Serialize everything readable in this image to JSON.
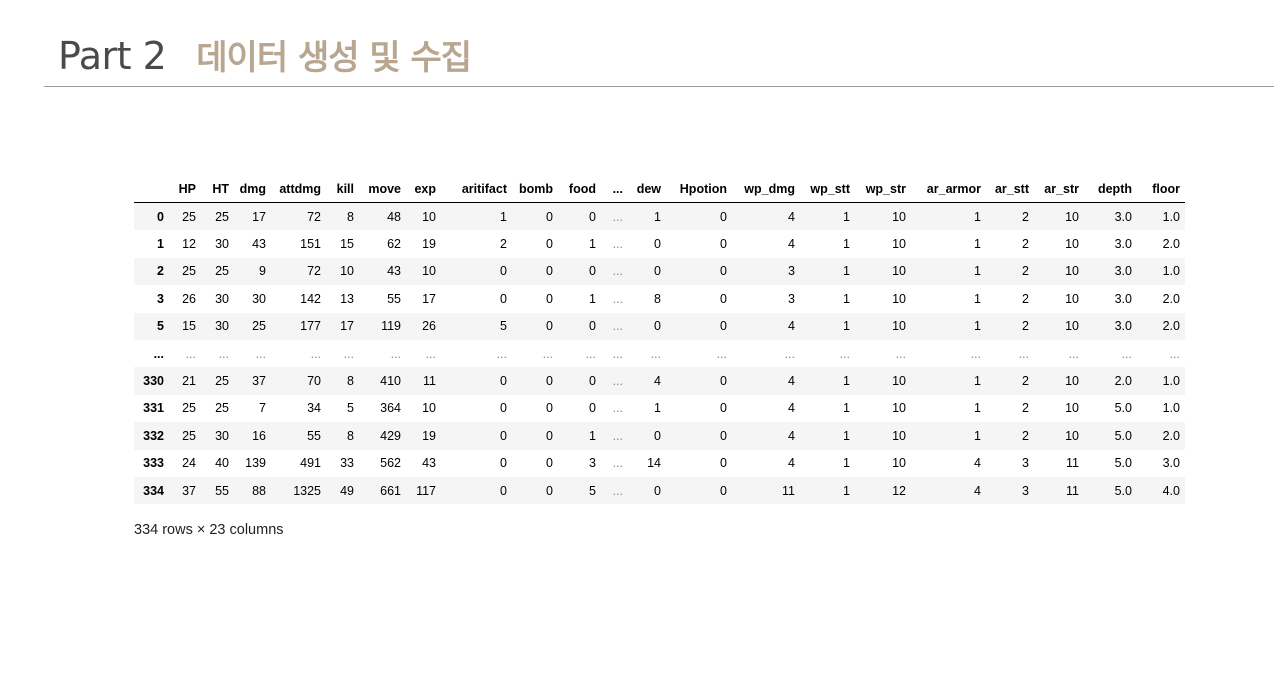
{
  "header": {
    "part": "Part 2",
    "subtitle": "데이터 생성 및 수집"
  },
  "dataframe": {
    "columns": [
      "",
      "HP",
      "HT",
      "dmg",
      "attdmg",
      "kill",
      "move",
      "exp",
      "aritifact",
      "bomb",
      "food",
      "...",
      "dew",
      "Hpotion",
      "wp_dmg",
      "wp_stt",
      "wp_str",
      "ar_armor",
      "ar_stt",
      "ar_str",
      "depth",
      "floor"
    ],
    "rows": [
      [
        "0",
        "25",
        "25",
        "17",
        "72",
        "8",
        "48",
        "10",
        "1",
        "0",
        "0",
        "...",
        "1",
        "0",
        "4",
        "1",
        "10",
        "1",
        "2",
        "10",
        "3.0",
        "1.0"
      ],
      [
        "1",
        "12",
        "30",
        "43",
        "151",
        "15",
        "62",
        "19",
        "2",
        "0",
        "1",
        "...",
        "0",
        "0",
        "4",
        "1",
        "10",
        "1",
        "2",
        "10",
        "3.0",
        "2.0"
      ],
      [
        "2",
        "25",
        "25",
        "9",
        "72",
        "10",
        "43",
        "10",
        "0",
        "0",
        "0",
        "...",
        "0",
        "0",
        "3",
        "1",
        "10",
        "1",
        "2",
        "10",
        "3.0",
        "1.0"
      ],
      [
        "3",
        "26",
        "30",
        "30",
        "142",
        "13",
        "55",
        "17",
        "0",
        "0",
        "1",
        "...",
        "8",
        "0",
        "3",
        "1",
        "10",
        "1",
        "2",
        "10",
        "3.0",
        "2.0"
      ],
      [
        "5",
        "15",
        "30",
        "25",
        "177",
        "17",
        "119",
        "26",
        "5",
        "0",
        "0",
        "...",
        "0",
        "0",
        "4",
        "1",
        "10",
        "1",
        "2",
        "10",
        "3.0",
        "2.0"
      ],
      [
        "...",
        "...",
        "...",
        "...",
        "...",
        "...",
        "...",
        "...",
        "...",
        "...",
        "...",
        "...",
        "...",
        "...",
        "...",
        "...",
        "...",
        "...",
        "...",
        "...",
        "...",
        "..."
      ],
      [
        "330",
        "21",
        "25",
        "37",
        "70",
        "8",
        "410",
        "11",
        "0",
        "0",
        "0",
        "...",
        "4",
        "0",
        "4",
        "1",
        "10",
        "1",
        "2",
        "10",
        "2.0",
        "1.0"
      ],
      [
        "331",
        "25",
        "25",
        "7",
        "34",
        "5",
        "364",
        "10",
        "0",
        "0",
        "0",
        "...",
        "1",
        "0",
        "4",
        "1",
        "10",
        "1",
        "2",
        "10",
        "5.0",
        "1.0"
      ],
      [
        "332",
        "25",
        "30",
        "16",
        "55",
        "8",
        "429",
        "19",
        "0",
        "0",
        "1",
        "...",
        "0",
        "0",
        "4",
        "1",
        "10",
        "1",
        "2",
        "10",
        "5.0",
        "2.0"
      ],
      [
        "333",
        "24",
        "40",
        "139",
        "491",
        "33",
        "562",
        "43",
        "0",
        "0",
        "3",
        "...",
        "14",
        "0",
        "4",
        "1",
        "10",
        "4",
        "3",
        "11",
        "5.0",
        "3.0"
      ],
      [
        "334",
        "37",
        "55",
        "88",
        "1325",
        "49",
        "661",
        "117",
        "0",
        "0",
        "5",
        "...",
        "0",
        "0",
        "11",
        "1",
        "12",
        "4",
        "3",
        "11",
        "5.0",
        "4.0"
      ]
    ],
    "caption": "334 rows × 23 columns"
  }
}
